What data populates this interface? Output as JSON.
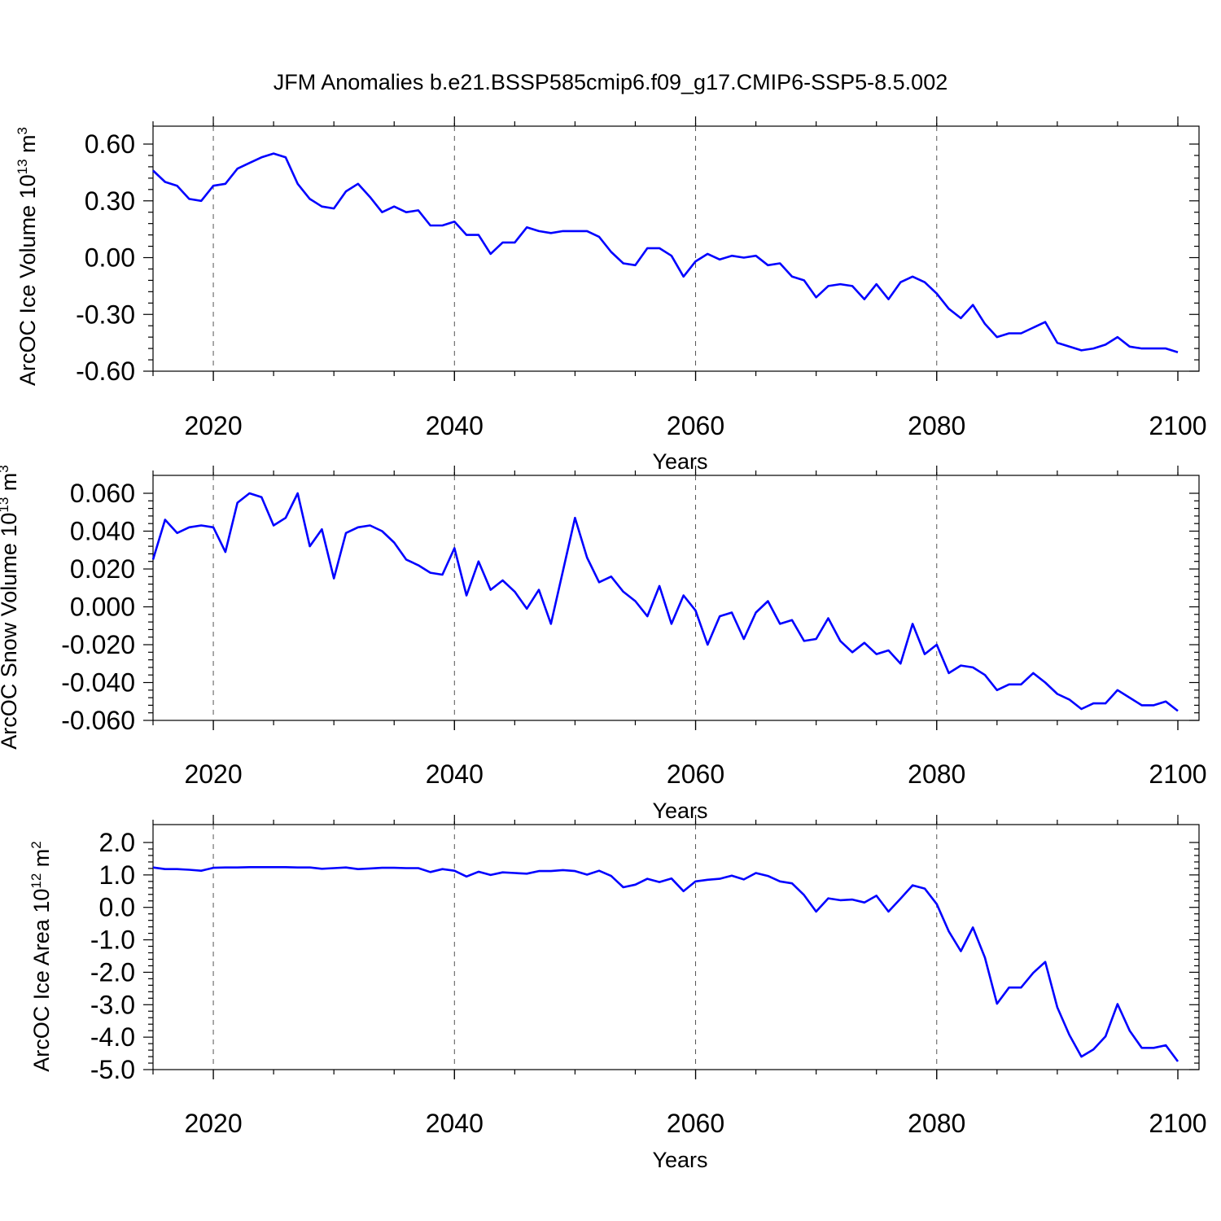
{
  "title": "JFM Anomalies b.e21.BSSP585cmip6.f09_g17.CMIP6-SSP5-8.5.002",
  "series_color": "#0000ff",
  "chart_data": [
    {
      "type": "line",
      "xlabel": "Years",
      "ylabel": "ArcOC Ice Volume 10",
      "ylabel_exp": "13",
      "ylabel_unit": " m",
      "ylabel_unit_exp": "3",
      "xlim": [
        2015,
        2100
      ],
      "ylim": [
        -0.6,
        0.6
      ],
      "grid": "vertical dashed at labeled years",
      "x_ticks": [
        2020,
        2040,
        2060,
        2080,
        2100
      ],
      "x_tick_labels": [
        "2020",
        "2040",
        "2060",
        "2080",
        "2100"
      ],
      "y_ticks": [
        0.6,
        0.3,
        0.0,
        -0.3,
        -0.6
      ],
      "y_tick_labels": [
        "0.60",
        "0.30",
        "0.00",
        "-0.30",
        "-0.60"
      ],
      "x": [
        2015,
        2016,
        2017,
        2018,
        2019,
        2020,
        2021,
        2022,
        2023,
        2024,
        2025,
        2026,
        2027,
        2028,
        2029,
        2030,
        2031,
        2032,
        2033,
        2034,
        2035,
        2036,
        2037,
        2038,
        2039,
        2040,
        2041,
        2042,
        2043,
        2044,
        2045,
        2046,
        2047,
        2048,
        2049,
        2050,
        2051,
        2052,
        2053,
        2054,
        2055,
        2056,
        2057,
        2058,
        2059,
        2060,
        2061,
        2062,
        2063,
        2064,
        2065,
        2066,
        2067,
        2068,
        2069,
        2070,
        2071,
        2072,
        2073,
        2074,
        2075,
        2076,
        2077,
        2078,
        2079,
        2080,
        2081,
        2082,
        2083,
        2084,
        2085,
        2086,
        2087,
        2088,
        2089,
        2090,
        2091,
        2092,
        2093,
        2094,
        2095,
        2096,
        2097,
        2098,
        2099,
        2100
      ],
      "values": [
        0.46,
        0.4,
        0.38,
        0.31,
        0.3,
        0.38,
        0.39,
        0.47,
        0.5,
        0.53,
        0.55,
        0.53,
        0.39,
        0.31,
        0.27,
        0.26,
        0.35,
        0.39,
        0.32,
        0.24,
        0.27,
        0.24,
        0.25,
        0.17,
        0.17,
        0.19,
        0.12,
        0.12,
        0.02,
        0.08,
        0.08,
        0.16,
        0.14,
        0.13,
        0.14,
        0.14,
        0.14,
        0.11,
        0.03,
        -0.03,
        -0.04,
        0.05,
        0.05,
        0.01,
        -0.1,
        -0.02,
        0.02,
        -0.01,
        0.01,
        0.0,
        0.01,
        -0.04,
        -0.03,
        -0.1,
        -0.12,
        -0.21,
        -0.15,
        -0.14,
        -0.15,
        -0.22,
        -0.14,
        -0.22,
        -0.13,
        -0.1,
        -0.13,
        -0.19,
        -0.27,
        -0.32,
        -0.25,
        -0.35,
        -0.42,
        -0.4,
        -0.4,
        -0.37,
        -0.34,
        -0.45,
        -0.47,
        -0.49,
        -0.48,
        -0.46,
        -0.42,
        -0.47,
        -0.48,
        -0.48,
        -0.48,
        -0.5
      ]
    },
    {
      "type": "line",
      "xlabel": "Years",
      "ylabel": "ArcOC Snow Volume 10",
      "ylabel_exp": "13",
      "ylabel_unit": " m",
      "ylabel_unit_exp": "3",
      "xlim": [
        2015,
        2100
      ],
      "ylim": [
        -0.06,
        0.06
      ],
      "grid": "vertical dashed at labeled years",
      "x_ticks": [
        2020,
        2040,
        2060,
        2080,
        2100
      ],
      "x_tick_labels": [
        "2020",
        "2040",
        "2060",
        "2080",
        "2100"
      ],
      "y_ticks": [
        0.06,
        0.04,
        0.02,
        0.0,
        -0.02,
        -0.04,
        -0.06
      ],
      "y_tick_labels": [
        "0.060",
        "0.040",
        "0.020",
        "0.000",
        "-0.020",
        "-0.040",
        "-0.060"
      ],
      "x": [
        2015,
        2016,
        2017,
        2018,
        2019,
        2020,
        2021,
        2022,
        2023,
        2024,
        2025,
        2026,
        2027,
        2028,
        2029,
        2030,
        2031,
        2032,
        2033,
        2034,
        2035,
        2036,
        2037,
        2038,
        2039,
        2040,
        2041,
        2042,
        2043,
        2044,
        2045,
        2046,
        2047,
        2048,
        2049,
        2050,
        2051,
        2052,
        2053,
        2054,
        2055,
        2056,
        2057,
        2058,
        2059,
        2060,
        2061,
        2062,
        2063,
        2064,
        2065,
        2066,
        2067,
        2068,
        2069,
        2070,
        2071,
        2072,
        2073,
        2074,
        2075,
        2076,
        2077,
        2078,
        2079,
        2080,
        2081,
        2082,
        2083,
        2084,
        2085,
        2086,
        2087,
        2088,
        2089,
        2090,
        2091,
        2092,
        2093,
        2094,
        2095,
        2096,
        2097,
        2098,
        2099,
        2100
      ],
      "values": [
        0.025,
        0.046,
        0.039,
        0.042,
        0.043,
        0.042,
        0.029,
        0.055,
        0.06,
        0.058,
        0.043,
        0.047,
        0.06,
        0.032,
        0.041,
        0.015,
        0.039,
        0.042,
        0.043,
        0.04,
        0.034,
        0.025,
        0.022,
        0.018,
        0.017,
        0.031,
        0.006,
        0.024,
        0.009,
        0.014,
        0.008,
        -0.001,
        0.009,
        -0.009,
        0.019,
        0.047,
        0.026,
        0.013,
        0.016,
        0.008,
        0.003,
        -0.005,
        0.011,
        -0.009,
        0.006,
        -0.002,
        -0.02,
        -0.005,
        -0.003,
        -0.017,
        -0.003,
        0.003,
        -0.009,
        -0.007,
        -0.018,
        -0.017,
        -0.006,
        -0.018,
        -0.024,
        -0.019,
        -0.025,
        -0.023,
        -0.03,
        -0.009,
        -0.025,
        -0.02,
        -0.035,
        -0.031,
        -0.032,
        -0.036,
        -0.044,
        -0.041,
        -0.041,
        -0.035,
        -0.04,
        -0.046,
        -0.049,
        -0.054,
        -0.051,
        -0.051,
        -0.044,
        -0.048,
        -0.052,
        -0.052,
        -0.05,
        -0.055
      ]
    },
    {
      "type": "line",
      "xlabel": "Years",
      "ylabel": "ArcOC Ice Area 10",
      "ylabel_exp": "12",
      "ylabel_unit": " m",
      "ylabel_unit_exp": "2",
      "xlim": [
        2015,
        2100
      ],
      "ylim": [
        -5.0,
        2.0
      ],
      "grid": "vertical dashed at labeled years",
      "x_ticks": [
        2020,
        2040,
        2060,
        2080,
        2100
      ],
      "x_tick_labels": [
        "2020",
        "2040",
        "2060",
        "2080",
        "2100"
      ],
      "y_ticks": [
        2.0,
        1.0,
        0.0,
        -1.0,
        -2.0,
        -3.0,
        -4.0,
        -5.0
      ],
      "y_tick_labels": [
        "2.0",
        "1.0",
        "0.0",
        "-1.0",
        "-2.0",
        "-3.0",
        "-4.0",
        "-5.0"
      ],
      "x": [
        2015,
        2016,
        2017,
        2018,
        2019,
        2020,
        2021,
        2022,
        2023,
        2024,
        2025,
        2026,
        2027,
        2028,
        2029,
        2030,
        2031,
        2032,
        2033,
        2034,
        2035,
        2036,
        2037,
        2038,
        2039,
        2040,
        2041,
        2042,
        2043,
        2044,
        2045,
        2046,
        2047,
        2048,
        2049,
        2050,
        2051,
        2052,
        2053,
        2054,
        2055,
        2056,
        2057,
        2058,
        2059,
        2060,
        2061,
        2062,
        2063,
        2064,
        2065,
        2066,
        2067,
        2068,
        2069,
        2070,
        2071,
        2072,
        2073,
        2074,
        2075,
        2076,
        2077,
        2078,
        2079,
        2080,
        2081,
        2082,
        2083,
        2084,
        2085,
        2086,
        2087,
        2088,
        2089,
        2090,
        2091,
        2092,
        2093,
        2094,
        2095,
        2096,
        2097,
        2098,
        2099,
        2100
      ],
      "values": [
        1.23,
        1.18,
        1.18,
        1.16,
        1.13,
        1.22,
        1.23,
        1.23,
        1.24,
        1.24,
        1.24,
        1.24,
        1.23,
        1.23,
        1.19,
        1.21,
        1.23,
        1.18,
        1.2,
        1.22,
        1.22,
        1.21,
        1.21,
        1.09,
        1.18,
        1.13,
        0.95,
        1.1,
        1.0,
        1.08,
        1.06,
        1.04,
        1.12,
        1.12,
        1.15,
        1.12,
        1.01,
        1.13,
        0.97,
        0.62,
        0.7,
        0.88,
        0.78,
        0.89,
        0.5,
        0.8,
        0.85,
        0.88,
        0.98,
        0.86,
        1.06,
        0.97,
        0.8,
        0.74,
        0.38,
        -0.13,
        0.28,
        0.22,
        0.24,
        0.15,
        0.36,
        -0.13,
        0.27,
        0.68,
        0.58,
        0.1,
        -0.74,
        -1.35,
        -0.62,
        -1.55,
        -2.97,
        -2.47,
        -2.47,
        -2.02,
        -1.68,
        -3.08,
        -3.93,
        -4.6,
        -4.38,
        -3.98,
        -2.98,
        -3.8,
        -4.33,
        -4.33,
        -4.25,
        -4.75
      ]
    }
  ]
}
